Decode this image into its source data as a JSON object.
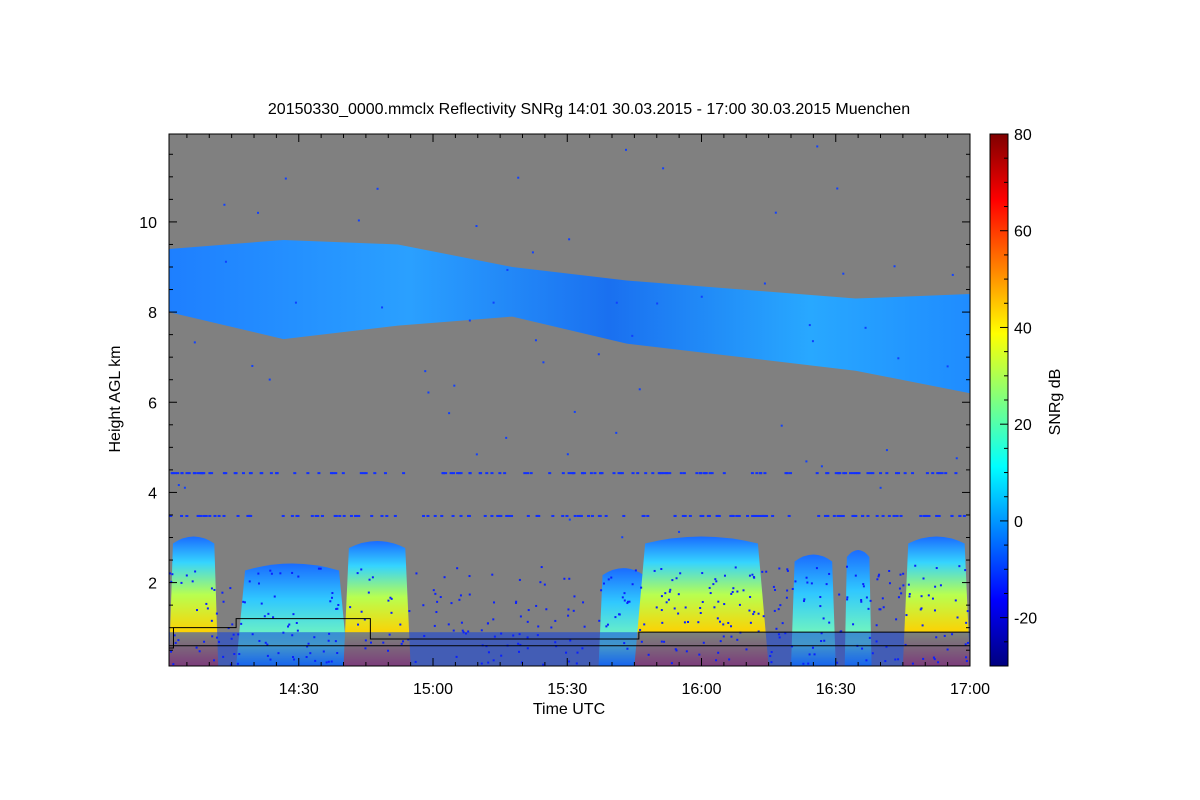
{
  "chart_data": {
    "type": "heatmap",
    "title": "20150330_0000.mmclx Reflectivity SNRg   14:01 30.03.2015 - 17:00 30.03.2015 Muenchen",
    "xlabel": "Time UTC",
    "ylabel": "Height AGL km",
    "xlim_minutes": [
      841,
      1020
    ],
    "ylim": [
      0.15,
      11.95
    ],
    "x_ticks": [
      {
        "label": "14:30",
        "minutes": 870
      },
      {
        "label": "15:00",
        "minutes": 900
      },
      {
        "label": "15:30",
        "minutes": 930
      },
      {
        "label": "16:00",
        "minutes": 960
      },
      {
        "label": "16:30",
        "minutes": 990
      },
      {
        "label": "17:00",
        "minutes": 1020
      }
    ],
    "y_ticks": [
      2,
      4,
      6,
      8,
      10
    ],
    "colorbar": {
      "label": "SNRg dB",
      "min": -30,
      "max": 80,
      "ticks": [
        -20,
        0,
        20,
        40,
        60,
        80
      ],
      "colormap": "jet"
    },
    "background_color": "#808080",
    "cloud_layers": [
      {
        "name": "upper cloud",
        "time_minutes": [
          841,
          1020
        ],
        "top_km": [
          9.4,
          9.6,
          9.5,
          9.0,
          8.7,
          8.5,
          8.3,
          8.4
        ],
        "base_km": [
          8.0,
          7.4,
          7.7,
          7.9,
          7.3,
          7.0,
          6.7,
          6.2
        ]
      },
      {
        "name": "low clouds",
        "segments": [
          {
            "time_minutes": [
              841,
              852
            ],
            "top_km": 3.0
          },
          {
            "time_minutes": [
              856,
              881
            ],
            "top_km": 2.4
          },
          {
            "time_minutes": [
              880,
              895
            ],
            "top_km": 2.9
          },
          {
            "time_minutes": [
              937,
              948
            ],
            "top_km": 2.3
          },
          {
            "time_minutes": [
              945,
              975
            ],
            "top_km": 3.0
          },
          {
            "time_minutes": [
              980,
              990
            ],
            "top_km": 2.6
          },
          {
            "time_minutes": [
              992,
              998
            ],
            "top_km": 2.7
          },
          {
            "time_minutes": [
              1005,
              1020
            ],
            "top_km": 3.0
          }
        ]
      }
    ],
    "black_lines": [
      {
        "x_minutes": [
          841,
          842,
          842,
          856,
          856,
          886,
          886,
          946,
          946,
          1020
        ],
        "y_km": [
          0.55,
          0.55,
          1.0,
          1.0,
          1.2,
          1.2,
          0.75,
          0.75,
          0.9,
          0.9
        ]
      },
      {
        "x_minutes": [
          841,
          1020
        ],
        "y_km": [
          0.6,
          0.6
        ]
      }
    ]
  }
}
